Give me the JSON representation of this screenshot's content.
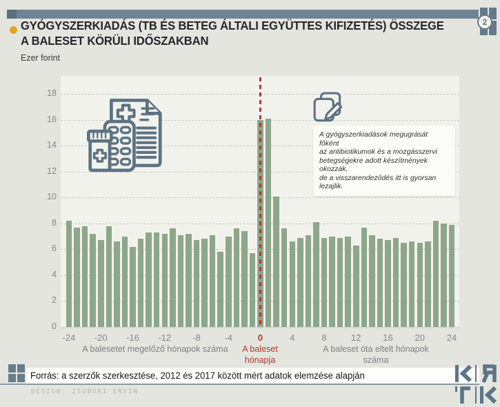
{
  "header": {
    "badge_number": "2",
    "title": "GYÓGYSZERKIADÁS (TB ÉS BETEG ÁLTALI EGYÜTTES KIFIZETÉS) ÖSSZEGE\nA BALESET KÖRÜLI IDŐSZAKBAN",
    "unit_label": "Ezer forint"
  },
  "chart_data": {
    "type": "bar",
    "title": "GYÓGYSZERKIADÁS (TB ÉS BETEG ÁLTALI EGYÜTTES KIFIZETÉS) ÖSSZEGE A BALESET KÖRÜLI IDŐSZAKBAN",
    "ylabel": "Ezer forint",
    "x": [
      -24,
      -23,
      -22,
      -21,
      -20,
      -19,
      -18,
      -17,
      -16,
      -15,
      -14,
      -13,
      -12,
      -11,
      -10,
      -9,
      -8,
      -7,
      -6,
      -5,
      -4,
      -3,
      -2,
      -1,
      0,
      1,
      2,
      3,
      4,
      5,
      6,
      7,
      8,
      9,
      10,
      11,
      12,
      13,
      14,
      15,
      16,
      17,
      18,
      19,
      20,
      21,
      22,
      23,
      24
    ],
    "values": [
      8.2,
      7.7,
      7.8,
      7.2,
      6.7,
      7.8,
      6.6,
      7.0,
      6.2,
      6.8,
      7.3,
      7.3,
      7.2,
      7.6,
      7.1,
      7.2,
      6.7,
      6.8,
      7.1,
      5.8,
      7.0,
      7.6,
      7.4,
      5.7,
      16.0,
      16.1,
      10.1,
      7.6,
      6.6,
      6.9,
      7.1,
      8.1,
      6.9,
      7.0,
      6.9,
      7.0,
      6.3,
      7.7,
      7.1,
      6.8,
      6.7,
      6.9,
      6.5,
      6.6,
      6.5,
      6.6,
      8.2,
      8.0,
      7.9
    ],
    "ylim": [
      0,
      18
    ],
    "ytick_step": 2,
    "xticks": [
      -24,
      -20,
      -16,
      -12,
      -8,
      -4,
      0,
      4,
      8,
      12,
      16,
      20,
      24
    ],
    "grid": "dashed-horizontal",
    "legend": "none",
    "bar_color": "#8ea68a",
    "event_line_x": 0,
    "event_line_color": "#b5382c"
  },
  "annotation": {
    "text": "A gyógyszerkiadások megugrását főként\naz antibiotikumok és a mozgásszervi\nbetegségekre adott készítmények okozzák,\nde a visszarendeződés itt is gyorsan lezajlik."
  },
  "axis_captions": {
    "left": "A balesetet megelőző hónapok száma",
    "center": "A baleset\nhónapja",
    "right": "A baleset óta eltelt hónapok száma"
  },
  "footer": {
    "source": "Forrás: a szerzők szerkesztése, 2012 és 2017 között mért adatok elemzése alapján",
    "credit": "DESIGN: ZSUBORI ERVIN",
    "logo_letters": "KRTK"
  },
  "colors": {
    "background": "#e4e5df",
    "plot_background": "#f2f2ec",
    "bar": "#8ea68a",
    "slate": "#64798b",
    "accent_red": "#b5382c",
    "accent_orange": "#e8a31f",
    "title_text": "#26262c",
    "axis_text": "#85868a"
  }
}
